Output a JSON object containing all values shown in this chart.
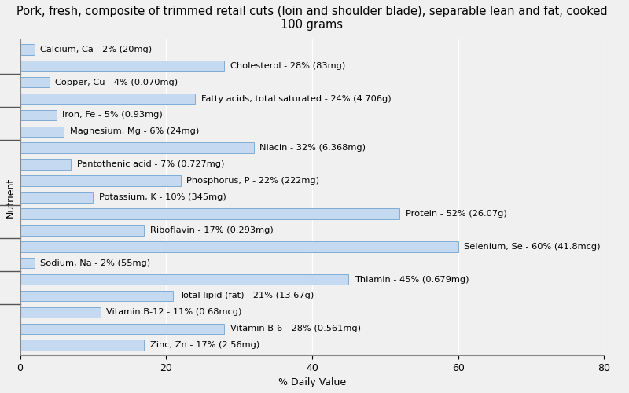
{
  "title": "Pork, fresh, composite of trimmed retail cuts (loin and shoulder blade), separable lean and fat, cooked\n100 grams",
  "xlabel": "% Daily Value",
  "ylabel": "Nutrient",
  "nutrients": [
    "Calcium, Ca - 2% (20mg)",
    "Cholesterol - 28% (83mg)",
    "Copper, Cu - 4% (0.070mg)",
    "Fatty acids, total saturated - 24% (4.706g)",
    "Iron, Fe - 5% (0.93mg)",
    "Magnesium, Mg - 6% (24mg)",
    "Niacin - 32% (6.368mg)",
    "Pantothenic acid - 7% (0.727mg)",
    "Phosphorus, P - 22% (222mg)",
    "Potassium, K - 10% (345mg)",
    "Protein - 52% (26.07g)",
    "Riboflavin - 17% (0.293mg)",
    "Selenium, Se - 60% (41.8mcg)",
    "Sodium, Na - 2% (55mg)",
    "Thiamin - 45% (0.679mg)",
    "Total lipid (fat) - 21% (13.67g)",
    "Vitamin B-12 - 11% (0.68mcg)",
    "Vitamin B-6 - 28% (0.561mg)",
    "Zinc, Zn - 17% (2.56mg)"
  ],
  "values": [
    2,
    28,
    4,
    24,
    5,
    6,
    32,
    7,
    22,
    10,
    52,
    17,
    60,
    2,
    45,
    21,
    11,
    28,
    17
  ],
  "bar_color": "#c5d9f1",
  "bar_edge_color": "#7eadd4",
  "background_color": "#f0f0f0",
  "plot_bg_color": "#f0f0f0",
  "title_fontsize": 10.5,
  "label_fontsize": 8.2,
  "tick_fontsize": 9,
  "axis_label_fontsize": 9,
  "xlim": [
    0,
    80
  ],
  "xticks": [
    0,
    20,
    40,
    60,
    80
  ],
  "bar_height": 0.65,
  "group_separator_positions": [
    1.5,
    3.5,
    5.5,
    9.5,
    11.5,
    13.5,
    15.5
  ]
}
